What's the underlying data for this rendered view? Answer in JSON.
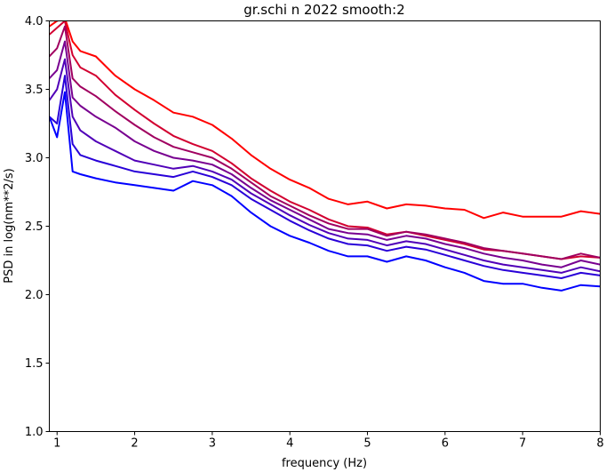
{
  "chart_data": {
    "type": "line",
    "title": "gr.schi n 2022 smooth:2",
    "xlabel": "frequency (Hz)",
    "ylabel": "PSD in log(nm**2/s)",
    "xlim": [
      0.9,
      8.0
    ],
    "ylim": [
      1.0,
      4.0
    ],
    "xticks": [
      "1",
      "2",
      "3",
      "4",
      "5",
      "6",
      "7",
      "8"
    ],
    "yticks": [
      "1.0",
      "1.5",
      "2.0",
      "2.5",
      "3.0",
      "3.5",
      "4.0"
    ],
    "grid": false,
    "legend": "none",
    "x": [
      0.9,
      1.0,
      1.1,
      1.2,
      1.3,
      1.5,
      1.75,
      2.0,
      2.25,
      2.5,
      2.75,
      3.0,
      3.25,
      3.5,
      3.75,
      4.0,
      4.25,
      4.5,
      4.75,
      5.0,
      5.25,
      5.5,
      5.75,
      6.0,
      6.25,
      6.5,
      6.75,
      7.0,
      7.25,
      7.5,
      7.75,
      8.0
    ],
    "series": [
      {
        "color": "#ff0000",
        "values": [
          3.96,
          4.0,
          4.02,
          3.85,
          3.78,
          3.74,
          3.6,
          3.5,
          3.42,
          3.33,
          3.3,
          3.24,
          3.14,
          3.02,
          2.92,
          2.84,
          2.78,
          2.7,
          2.66,
          2.68,
          2.63,
          2.66,
          2.65,
          2.63,
          2.62,
          2.56,
          2.6,
          2.57,
          2.57,
          2.57,
          2.61,
          2.59
        ]
      },
      {
        "color": "#d20030",
        "values": [
          3.9,
          3.95,
          4.0,
          3.75,
          3.66,
          3.6,
          3.46,
          3.35,
          3.25,
          3.16,
          3.1,
          3.05,
          2.96,
          2.85,
          2.76,
          2.68,
          2.62,
          2.55,
          2.5,
          2.49,
          2.44,
          2.46,
          2.43,
          2.4,
          2.37,
          2.33,
          2.32,
          2.3,
          2.28,
          2.26,
          2.28,
          2.27
        ]
      },
      {
        "color": "#a00060",
        "values": [
          3.74,
          3.8,
          3.96,
          3.58,
          3.52,
          3.45,
          3.34,
          3.24,
          3.15,
          3.08,
          3.04,
          3.0,
          2.92,
          2.82,
          2.72,
          2.65,
          2.58,
          2.52,
          2.48,
          2.48,
          2.43,
          2.46,
          2.44,
          2.41,
          2.38,
          2.34,
          2.32,
          2.3,
          2.28,
          2.26,
          2.3,
          2.27
        ]
      },
      {
        "color": "#780090",
        "values": [
          3.58,
          3.64,
          3.85,
          3.44,
          3.38,
          3.3,
          3.22,
          3.12,
          3.05,
          3.0,
          2.98,
          2.95,
          2.88,
          2.78,
          2.69,
          2.62,
          2.55,
          2.48,
          2.45,
          2.44,
          2.4,
          2.43,
          2.41,
          2.37,
          2.34,
          2.3,
          2.27,
          2.25,
          2.22,
          2.2,
          2.25,
          2.22
        ]
      },
      {
        "color": "#5000b8",
        "values": [
          3.42,
          3.5,
          3.72,
          3.3,
          3.2,
          3.12,
          3.05,
          2.98,
          2.95,
          2.92,
          2.94,
          2.9,
          2.84,
          2.74,
          2.66,
          2.58,
          2.51,
          2.45,
          2.41,
          2.4,
          2.36,
          2.39,
          2.37,
          2.33,
          2.29,
          2.25,
          2.22,
          2.2,
          2.18,
          2.16,
          2.2,
          2.17
        ]
      },
      {
        "color": "#2800d8",
        "values": [
          3.3,
          3.25,
          3.6,
          3.1,
          3.02,
          2.98,
          2.94,
          2.9,
          2.88,
          2.86,
          2.9,
          2.86,
          2.8,
          2.7,
          2.62,
          2.54,
          2.47,
          2.41,
          2.37,
          2.36,
          2.32,
          2.35,
          2.33,
          2.29,
          2.25,
          2.21,
          2.18,
          2.16,
          2.14,
          2.12,
          2.16,
          2.14
        ]
      },
      {
        "color": "#0000ff",
        "values": [
          3.3,
          3.15,
          3.48,
          2.9,
          2.88,
          2.85,
          2.82,
          2.8,
          2.78,
          2.76,
          2.83,
          2.8,
          2.72,
          2.6,
          2.5,
          2.43,
          2.38,
          2.32,
          2.28,
          2.28,
          2.24,
          2.28,
          2.25,
          2.2,
          2.16,
          2.1,
          2.08,
          2.08,
          2.05,
          2.03,
          2.07,
          2.06
        ]
      }
    ]
  }
}
